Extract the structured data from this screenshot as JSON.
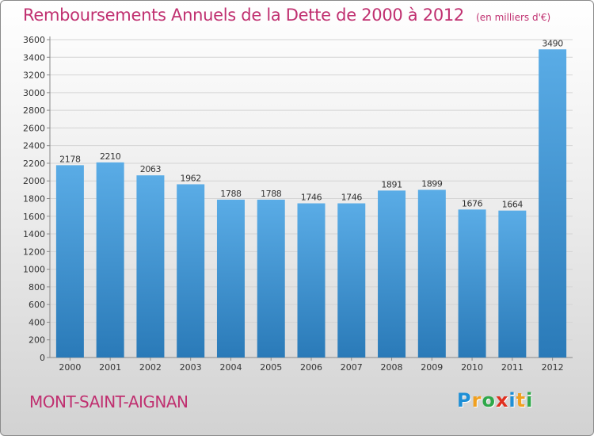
{
  "header": {
    "title": "Remboursements Annuels de la Dette de 2000 à 2012",
    "unit": "(en milliers d'€)"
  },
  "footer": {
    "commune": "MONT-SAINT-AIGNAN",
    "logo_letters": [
      "P",
      "r",
      "o",
      "x",
      "i",
      "t",
      "i"
    ],
    "logo_colors": [
      "#1e8fd6",
      "#f0a020",
      "#2fa84a",
      "#e03020",
      "#1e8fd6",
      "#f0a020",
      "#2fa84a"
    ]
  },
  "chart_data": {
    "type": "bar",
    "categories": [
      "2000",
      "2001",
      "2002",
      "2003",
      "2004",
      "2005",
      "2006",
      "2007",
      "2008",
      "2009",
      "2010",
      "2011",
      "2012"
    ],
    "values": [
      2178,
      2210,
      2063,
      1962,
      1788,
      1788,
      1746,
      1746,
      1891,
      1899,
      1676,
      1664,
      3490
    ],
    "value_labels": [
      "2178",
      "2210",
      "2063",
      "1962",
      "1788",
      "1788",
      "1746",
      "1746",
      "1891",
      "1899",
      "1676",
      "1664",
      "3490"
    ],
    "yticks": [
      "0",
      "200",
      "400",
      "600",
      "800",
      "1000",
      "1200",
      "1400",
      "1600",
      "1800",
      "2000",
      "2200",
      "2400",
      "2600",
      "2800",
      "3000",
      "3200",
      "3400",
      "3600"
    ],
    "ylim": [
      0,
      3600
    ],
    "grid": true,
    "bar_color_top": "#5aace6",
    "bar_color_bottom": "#2a7ab8"
  }
}
